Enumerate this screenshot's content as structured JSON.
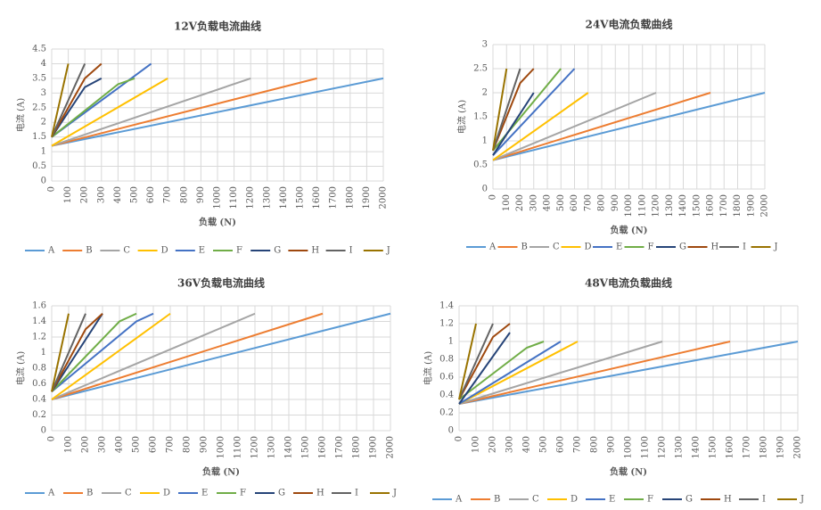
{
  "chart_data": [
    {
      "type": "line",
      "title": "12V负载电流曲线",
      "x_label": "负载 (N)",
      "y_label": "电流 (A)",
      "grid": true,
      "xlim": [
        0,
        2000
      ],
      "xticks": [
        0,
        100,
        200,
        300,
        400,
        500,
        600,
        700,
        800,
        900,
        1000,
        1100,
        1200,
        1300,
        1400,
        1500,
        1600,
        1700,
        1800,
        1900,
        2000
      ],
      "ylim": [
        0,
        4.5
      ],
      "yticks": [
        0,
        0.5,
        1,
        1.5,
        2,
        2.5,
        3,
        3.5,
        4,
        4.5
      ],
      "series": [
        {
          "name": "A",
          "color": "#5b9bd5",
          "x": [
            0,
            2000
          ],
          "values": [
            1.2,
            3.5
          ]
        },
        {
          "name": "B",
          "color": "#ed7d31",
          "x": [
            0,
            1600
          ],
          "values": [
            1.2,
            3.5
          ]
        },
        {
          "name": "C",
          "color": "#a5a5a5",
          "x": [
            0,
            1200
          ],
          "values": [
            1.2,
            3.5
          ]
        },
        {
          "name": "D",
          "color": "#ffc000",
          "x": [
            0,
            700
          ],
          "values": [
            1.2,
            3.5
          ]
        },
        {
          "name": "E",
          "color": "#4472c4",
          "x": [
            0,
            600
          ],
          "values": [
            1.5,
            4
          ]
        },
        {
          "name": "F",
          "color": "#70ad47",
          "x": [
            0,
            400,
            500
          ],
          "values": [
            1.5,
            3.3,
            3.5
          ]
        },
        {
          "name": "G",
          "color": "#264478",
          "x": [
            0,
            200,
            300
          ],
          "values": [
            1.5,
            3.2,
            3.5
          ]
        },
        {
          "name": "H",
          "color": "#9e480e",
          "x": [
            0,
            200,
            300
          ],
          "values": [
            1.5,
            3.5,
            4
          ]
        },
        {
          "name": "I",
          "color": "#636363",
          "x": [
            0,
            200
          ],
          "values": [
            1.5,
            4
          ]
        },
        {
          "name": "J",
          "color": "#997300",
          "x": [
            0,
            100
          ],
          "values": [
            1.5,
            4
          ]
        }
      ]
    },
    {
      "type": "line",
      "title": "24V电流负载曲线",
      "x_label": "负载 (N)",
      "y_label": "电流 (A)",
      "grid": true,
      "xlim": [
        0,
        2000
      ],
      "xticks": [
        0,
        100,
        200,
        300,
        400,
        500,
        600,
        700,
        800,
        900,
        1000,
        1100,
        1200,
        1300,
        1400,
        1500,
        1600,
        1700,
        1800,
        1900,
        2000
      ],
      "ylim": [
        0,
        3
      ],
      "yticks": [
        0,
        0.5,
        1,
        1.5,
        2,
        2.5,
        3
      ],
      "series": [
        {
          "name": "A",
          "color": "#5b9bd5",
          "x": [
            0,
            2000
          ],
          "values": [
            0.6,
            2
          ]
        },
        {
          "name": "B",
          "color": "#ed7d31",
          "x": [
            0,
            1600
          ],
          "values": [
            0.6,
            2
          ]
        },
        {
          "name": "C",
          "color": "#a5a5a5",
          "x": [
            0,
            1200
          ],
          "values": [
            0.6,
            2
          ]
        },
        {
          "name": "D",
          "color": "#ffc000",
          "x": [
            0,
            700
          ],
          "values": [
            0.6,
            2
          ]
        },
        {
          "name": "E",
          "color": "#4472c4",
          "x": [
            0,
            600
          ],
          "values": [
            0.7,
            2.5
          ]
        },
        {
          "name": "F",
          "color": "#70ad47",
          "x": [
            0,
            500
          ],
          "values": [
            0.8,
            2.5
          ]
        },
        {
          "name": "G",
          "color": "#264478",
          "x": [
            0,
            300
          ],
          "values": [
            0.7,
            2
          ]
        },
        {
          "name": "H",
          "color": "#9e480e",
          "x": [
            0,
            200,
            300
          ],
          "values": [
            0.8,
            2.2,
            2.5
          ]
        },
        {
          "name": "I",
          "color": "#636363",
          "x": [
            0,
            200
          ],
          "values": [
            0.8,
            2.5
          ]
        },
        {
          "name": "J",
          "color": "#997300",
          "x": [
            0,
            100
          ],
          "values": [
            0.8,
            2.5
          ]
        }
      ]
    },
    {
      "type": "line",
      "title": "36V负载电流曲线",
      "x_label": "负载 (N)",
      "y_label": "电流 (A)",
      "grid": true,
      "xlim": [
        0,
        2000
      ],
      "xticks": [
        0,
        100,
        200,
        300,
        400,
        500,
        600,
        700,
        800,
        900,
        1000,
        1100,
        1200,
        1300,
        1400,
        1500,
        1600,
        1700,
        1800,
        1900,
        2000
      ],
      "ylim": [
        0,
        1.6
      ],
      "yticks": [
        0,
        0.2,
        0.4,
        0.6,
        0.8,
        1,
        1.2,
        1.4,
        1.6
      ],
      "series": [
        {
          "name": "A",
          "color": "#5b9bd5",
          "x": [
            0,
            2000
          ],
          "values": [
            0.4,
            1.5
          ]
        },
        {
          "name": "B",
          "color": "#ed7d31",
          "x": [
            0,
            1600
          ],
          "values": [
            0.4,
            1.5
          ]
        },
        {
          "name": "C",
          "color": "#a5a5a5",
          "x": [
            0,
            1200
          ],
          "values": [
            0.4,
            1.5
          ]
        },
        {
          "name": "D",
          "color": "#ffc000",
          "x": [
            0,
            700
          ],
          "values": [
            0.4,
            1.5
          ]
        },
        {
          "name": "E",
          "color": "#4472c4",
          "x": [
            0,
            500,
            600
          ],
          "values": [
            0.5,
            1.4,
            1.5
          ]
        },
        {
          "name": "F",
          "color": "#70ad47",
          "x": [
            0,
            400,
            500
          ],
          "values": [
            0.5,
            1.4,
            1.5
          ]
        },
        {
          "name": "G",
          "color": "#264478",
          "x": [
            0,
            300
          ],
          "values": [
            0.5,
            1.5
          ]
        },
        {
          "name": "H",
          "color": "#9e480e",
          "x": [
            0,
            200,
            300
          ],
          "values": [
            0.5,
            1.3,
            1.5
          ]
        },
        {
          "name": "I",
          "color": "#636363",
          "x": [
            0,
            200
          ],
          "values": [
            0.5,
            1.5
          ]
        },
        {
          "name": "J",
          "color": "#997300",
          "x": [
            0,
            100
          ],
          "values": [
            0.5,
            1.5
          ]
        }
      ]
    },
    {
      "type": "line",
      "title": "48V电流负载曲线",
      "x_label": "负载 (N)",
      "y_label": "电流 (A)",
      "grid": true,
      "xlim": [
        0,
        2000
      ],
      "xticks": [
        0,
        100,
        200,
        300,
        400,
        500,
        600,
        700,
        800,
        900,
        1000,
        1100,
        1200,
        1300,
        1400,
        1500,
        1600,
        1700,
        1800,
        1900,
        2000
      ],
      "ylim": [
        0,
        1.4
      ],
      "yticks": [
        0,
        0.2,
        0.4,
        0.6,
        0.8,
        1,
        1.2,
        1.4
      ],
      "series": [
        {
          "name": "A",
          "color": "#5b9bd5",
          "x": [
            0,
            2000
          ],
          "values": [
            0.3,
            1
          ]
        },
        {
          "name": "B",
          "color": "#ed7d31",
          "x": [
            0,
            1600
          ],
          "values": [
            0.3,
            1
          ]
        },
        {
          "name": "C",
          "color": "#a5a5a5",
          "x": [
            0,
            1200
          ],
          "values": [
            0.3,
            1
          ]
        },
        {
          "name": "D",
          "color": "#ffc000",
          "x": [
            0,
            700
          ],
          "values": [
            0.3,
            1
          ]
        },
        {
          "name": "E",
          "color": "#4472c4",
          "x": [
            0,
            600
          ],
          "values": [
            0.3,
            1
          ]
        },
        {
          "name": "F",
          "color": "#70ad47",
          "x": [
            0,
            400,
            500
          ],
          "values": [
            0.35,
            0.93,
            1
          ]
        },
        {
          "name": "G",
          "color": "#264478",
          "x": [
            0,
            300
          ],
          "values": [
            0.3,
            1.1
          ]
        },
        {
          "name": "H",
          "color": "#9e480e",
          "x": [
            0,
            200,
            300
          ],
          "values": [
            0.35,
            1.05,
            1.2
          ]
        },
        {
          "name": "I",
          "color": "#636363",
          "x": [
            0,
            200
          ],
          "values": [
            0.35,
            1.2
          ]
        },
        {
          "name": "J",
          "color": "#997300",
          "x": [
            0,
            100
          ],
          "values": [
            0.35,
            1.2
          ]
        }
      ]
    }
  ]
}
